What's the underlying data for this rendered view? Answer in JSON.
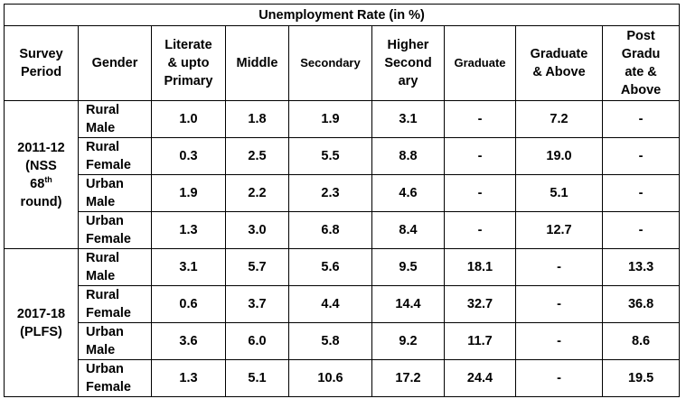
{
  "title": "Unemployment Rate (in %)",
  "headers": {
    "survey_period": [
      "Survey",
      "Period"
    ],
    "gender": [
      "Gender"
    ],
    "literate": [
      "Literate",
      "& upto",
      "Primary"
    ],
    "middle": [
      "Middle"
    ],
    "secondary": [
      "Secondary"
    ],
    "higher_secondary": [
      "Higher",
      "Second",
      "ary"
    ],
    "graduate": [
      "Graduate"
    ],
    "graduate_above": [
      "Graduate",
      "& Above"
    ],
    "post_graduate": [
      "Post",
      "Gradu",
      "ate &",
      "Above"
    ]
  },
  "groups": [
    {
      "period_main": "2011-12",
      "period_line2": "(NSS",
      "period_num": "68",
      "period_sup": "th",
      "period_line4": "round)",
      "rows": [
        {
          "gender": [
            "Rural",
            "Male"
          ],
          "cells": [
            "1.0",
            "1.8",
            "1.9",
            "3.1",
            "-",
            "7.2",
            "-"
          ]
        },
        {
          "gender": [
            "Rural",
            "Female"
          ],
          "cells": [
            "0.3",
            "2.5",
            "5.5",
            "8.8",
            "-",
            "19.0",
            "-"
          ]
        },
        {
          "gender": [
            "Urban",
            "Male"
          ],
          "cells": [
            "1.9",
            "2.2",
            "2.3",
            "4.6",
            "-",
            "5.1",
            "-"
          ]
        },
        {
          "gender": [
            "Urban",
            "Female"
          ],
          "cells": [
            "1.3",
            "3.0",
            "6.8",
            "8.4",
            "-",
            "12.7",
            "-"
          ]
        }
      ]
    },
    {
      "period_main": "2017-18",
      "period_line2": "(PLFS)",
      "rows": [
        {
          "gender": [
            "Rural",
            "Male"
          ],
          "cells": [
            "3.1",
            "5.7",
            "5.6",
            "9.5",
            "18.1",
            "-",
            "13.3"
          ]
        },
        {
          "gender": [
            "Rural",
            "Female"
          ],
          "cells": [
            "0.6",
            "3.7",
            "4.4",
            "14.4",
            "32.7",
            "-",
            "36.8"
          ]
        },
        {
          "gender": [
            "Urban",
            "Male"
          ],
          "cells": [
            "3.6",
            "6.0",
            "5.8",
            "9.2",
            "11.7",
            "-",
            "8.6"
          ]
        },
        {
          "gender": [
            "Urban",
            "Female"
          ],
          "cells": [
            "1.3",
            "5.1",
            "10.6",
            "17.2",
            "24.4",
            "-",
            "19.5"
          ]
        }
      ]
    }
  ]
}
